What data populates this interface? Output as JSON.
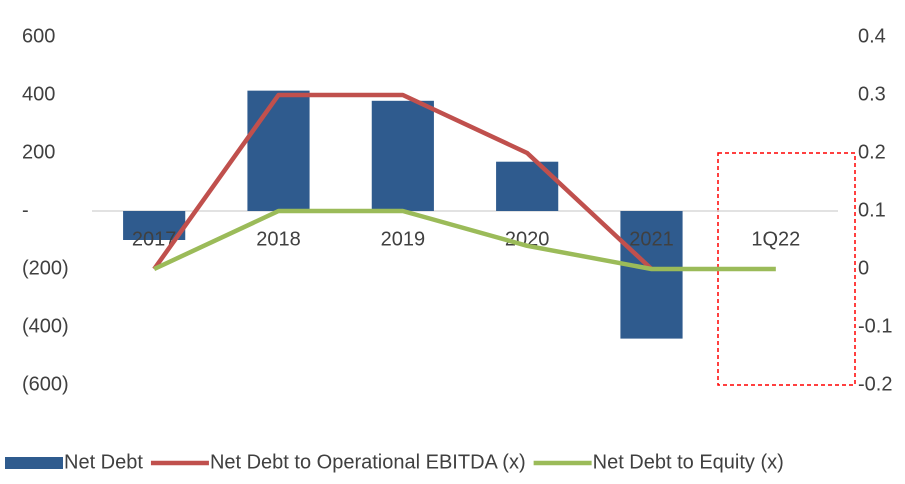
{
  "chart_data": {
    "type": "bar_line",
    "categories": [
      "2017",
      "2018",
      "2019",
      "2020",
      "2021",
      "1Q22"
    ],
    "series": [
      {
        "name": "Net Debt",
        "color": "#2f5b8e",
        "type": "bar",
        "values": [
          -100,
          415,
          380,
          170,
          -440,
          null
        ]
      },
      {
        "name": "Net Debt to Operational EBITDA (x)",
        "color": "#c0504d",
        "type": "line",
        "axis": "y2",
        "values": [
          0,
          0.3,
          0.3,
          0.2,
          0,
          null
        ]
      },
      {
        "name": "Net Debt to Equity (x)",
        "color": "#9bbb59",
        "type": "line",
        "axis": "y2",
        "values": [
          0,
          0.1,
          0.1,
          0.04,
          0,
          0
        ]
      }
    ],
    "ylim": [
      -600,
      600
    ],
    "yticks": [
      {
        "value": -600,
        "label": "(600)"
      },
      {
        "value": -400,
        "label": "(400)"
      },
      {
        "value": -200,
        "label": "(200)"
      },
      {
        "value": 0,
        "label": "-"
      },
      200,
      400,
      600
    ],
    "y2lim": [
      -0.2,
      0.4
    ],
    "y2ticks": [
      -0.2,
      -0.1,
      0,
      0.1,
      0.2,
      0.3,
      0.4
    ],
    "legend": "bottom"
  }
}
